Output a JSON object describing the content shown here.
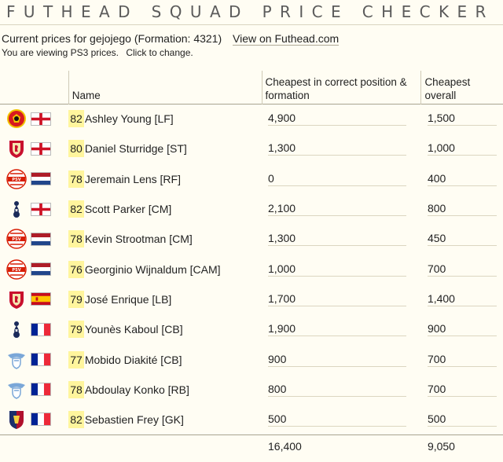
{
  "page": {
    "title": "FUTHEAD SQUAD PRICE CHECKER",
    "current_prices": "Current prices for gejojego (Formation: 4321)",
    "view_link": "View on Futhead.com",
    "platform_notice": "You are viewing PS3 prices.",
    "change_link": "Click to change."
  },
  "table": {
    "headers": {
      "name": "Name",
      "cheapest_position": "Cheapest in correct position & formation",
      "cheapest_overall": "Cheapest overall"
    },
    "rows": [
      {
        "club": "manutd-crest-icon",
        "flag": "england-flag-icon",
        "rating": "82",
        "name": "Ashley Young [LF]",
        "cheapest_position": "4,900",
        "cheapest_overall": "1,500"
      },
      {
        "club": "liverpool-crest-icon",
        "flag": "england-flag-icon",
        "rating": "80",
        "name": "Daniel Sturridge [ST]",
        "cheapest_position": "1,300",
        "cheapest_overall": "1,000"
      },
      {
        "club": "psv-crest-icon",
        "flag": "netherlands-flag-icon",
        "rating": "78",
        "name": "Jeremain Lens [RF]",
        "cheapest_position": "0",
        "cheapest_overall": "400"
      },
      {
        "club": "tottenham-crest-icon",
        "flag": "england-flag-icon",
        "rating": "82",
        "name": "Scott Parker [CM]",
        "cheapest_position": "2,100",
        "cheapest_overall": "800"
      },
      {
        "club": "psv-crest-icon",
        "flag": "netherlands-flag-icon",
        "rating": "78",
        "name": "Kevin Strootman [CM]",
        "cheapest_position": "1,300",
        "cheapest_overall": "450"
      },
      {
        "club": "psv-crest-icon",
        "flag": "netherlands-flag-icon",
        "rating": "76",
        "name": "Georginio Wijnaldum [CAM]",
        "cheapest_position": "1,000",
        "cheapest_overall": "700"
      },
      {
        "club": "liverpool-crest-icon",
        "flag": "spain-flag-icon",
        "rating": "79",
        "name": "José Enrique [LB]",
        "cheapest_position": "1,700",
        "cheapest_overall": "1,400"
      },
      {
        "club": "tottenham-crest-icon",
        "flag": "france-flag-icon",
        "rating": "79",
        "name": "Younès Kaboul [CB]",
        "cheapest_position": "1,900",
        "cheapest_overall": "900"
      },
      {
        "club": "lazio-crest-icon",
        "flag": "france-flag-icon",
        "rating": "77",
        "name": "Mobido Diakité [CB]",
        "cheapest_position": "900",
        "cheapest_overall": "700"
      },
      {
        "club": "lazio-crest-icon",
        "flag": "france-flag-icon",
        "rating": "78",
        "name": "Abdoulay Konko [RB]",
        "cheapest_position": "800",
        "cheapest_overall": "700"
      },
      {
        "club": "genoa-crest-icon",
        "flag": "france-flag-icon",
        "rating": "82",
        "name": "Sebastien Frey [GK]",
        "cheapest_position": "500",
        "cheapest_overall": "500"
      }
    ],
    "totals": {
      "cheapest_position": "16,400",
      "cheapest_overall": "9,050"
    }
  }
}
